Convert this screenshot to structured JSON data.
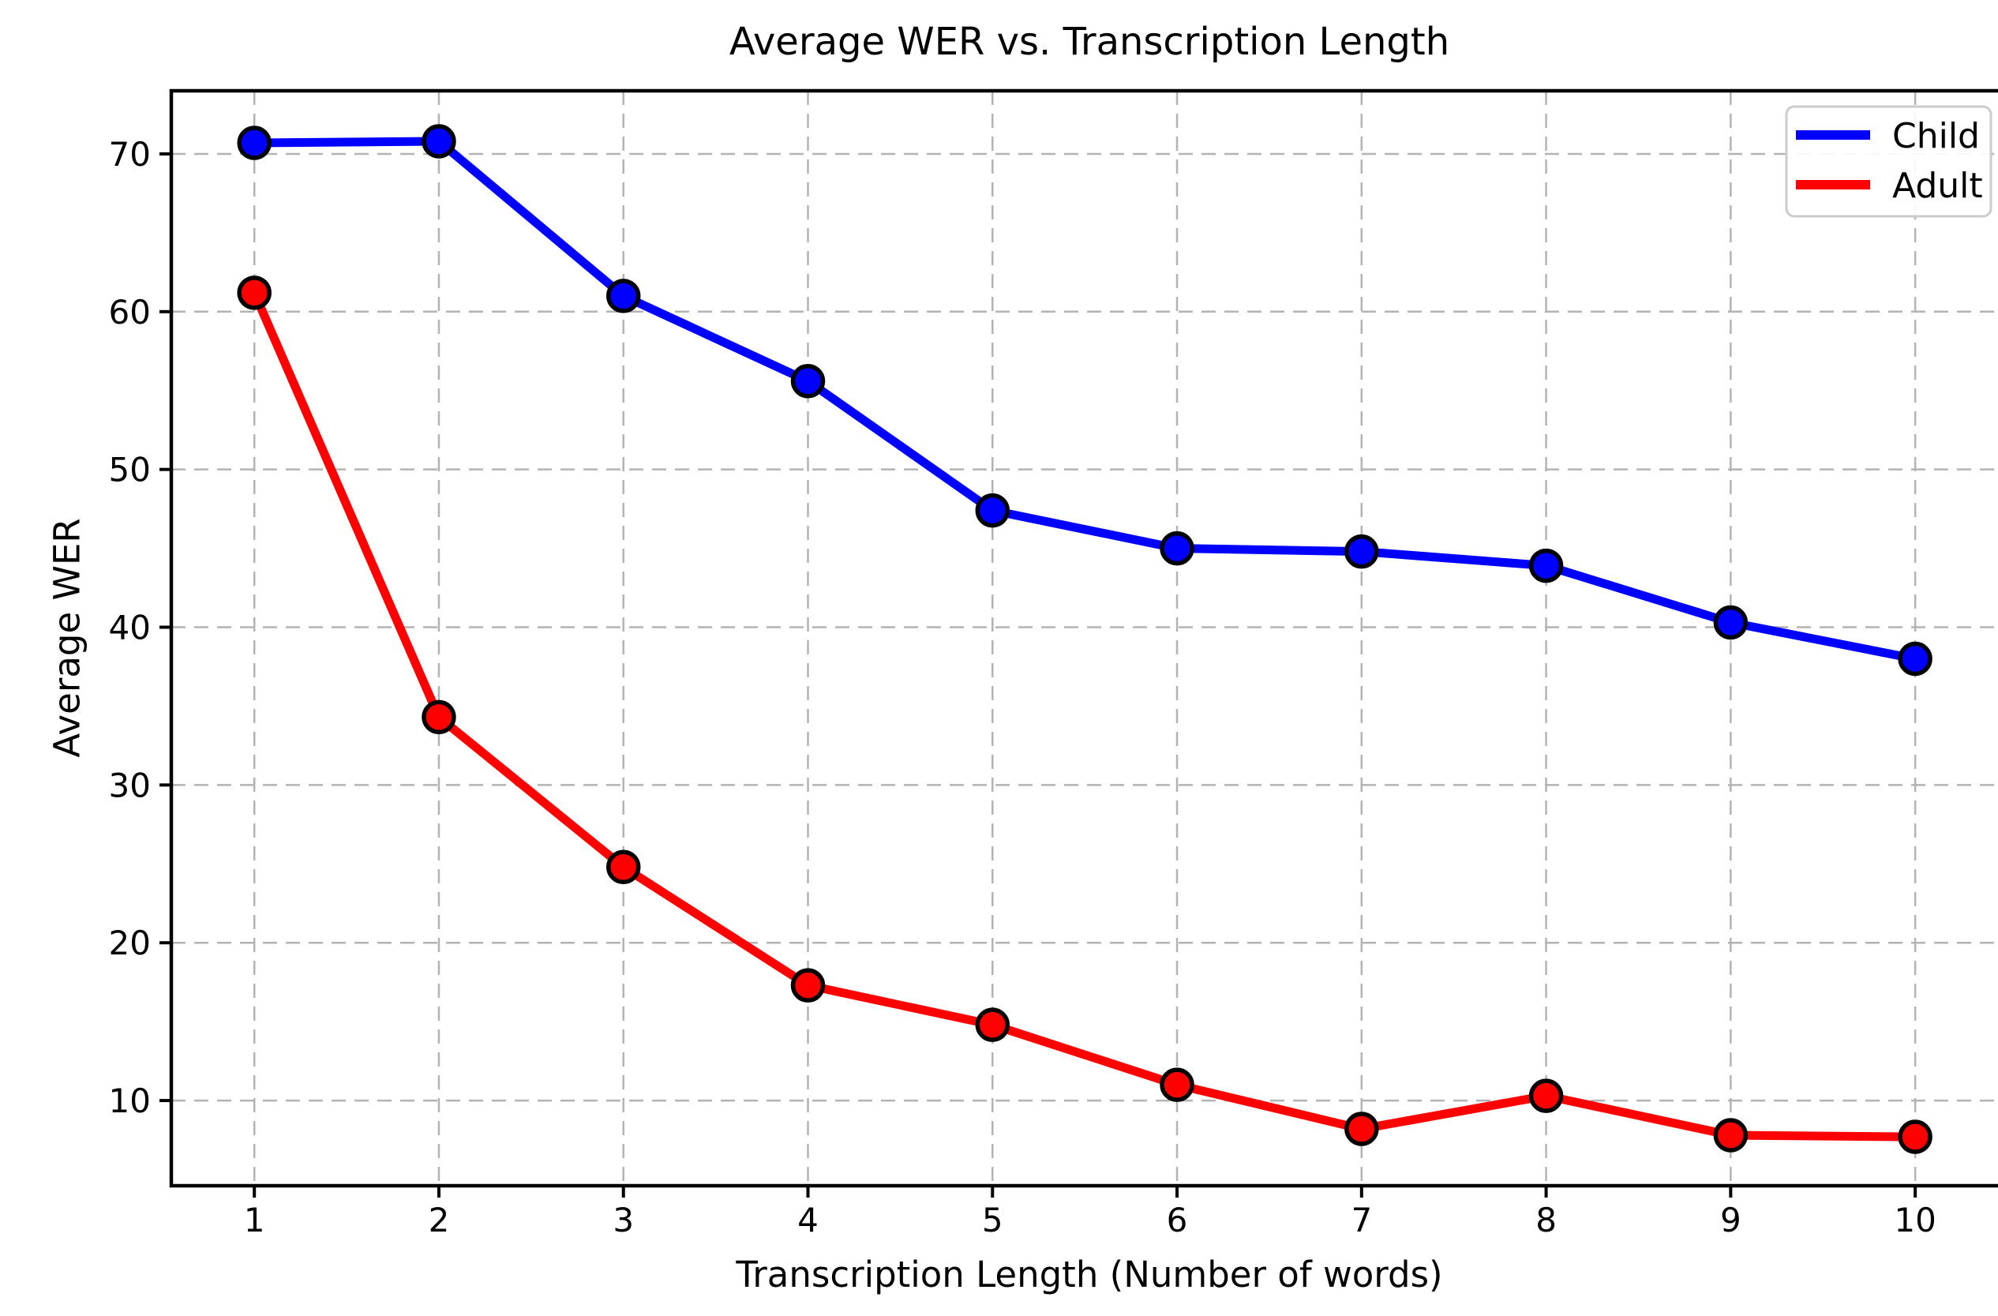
{
  "chart_data": {
    "type": "line",
    "title": "Average WER vs. Transcription Length",
    "xlabel": "Transcription Length (Number of words)",
    "ylabel": "Average WER",
    "x": [
      1,
      2,
      3,
      4,
      5,
      6,
      7,
      8,
      9,
      10
    ],
    "series": [
      {
        "name": "Child",
        "color": "#0000ff",
        "marker": "circle",
        "values": [
          70.7,
          70.8,
          61.0,
          55.6,
          47.4,
          45.0,
          44.8,
          43.9,
          40.3,
          38.0
        ]
      },
      {
        "name": "Adult",
        "color": "#ff0000",
        "marker": "circle",
        "values": [
          61.2,
          34.3,
          24.8,
          17.3,
          14.8,
          11.0,
          8.2,
          10.3,
          7.8,
          7.7
        ]
      }
    ],
    "xticks": [
      1,
      2,
      3,
      4,
      5,
      6,
      7,
      8,
      9,
      10
    ],
    "yticks": [
      10,
      20,
      30,
      40,
      50,
      60,
      70
    ],
    "xlim": [
      0.55,
      10.5
    ],
    "ylim": [
      4.6,
      74.0
    ],
    "grid": true,
    "grid_style": "dashed",
    "legend_position": "upper right",
    "legend_labels": [
      "Child",
      "Adult"
    ],
    "colors": {
      "background": "#ffffff",
      "grid": "#b3b3b3",
      "spine": "#000000",
      "tick_label": "#000000",
      "marker_edge": "#000000",
      "legend_border": "#cccccc",
      "legend_fill": "#ffffff"
    }
  }
}
